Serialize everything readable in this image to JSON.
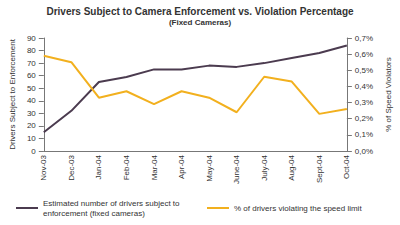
{
  "chart_data": {
    "type": "line",
    "title": "Drivers Subject to Camera Enforcement vs. Violation Percentage",
    "subtitle": "(Fixed Cameras)",
    "y_label": "Drivers Subject to Enforcement",
    "y2_label": "% of Speed Violators",
    "categories": [
      "Nov-03",
      "Dec-03",
      "Jan-04",
      "Feb-04",
      "Mar-04",
      "Apr-04",
      "May-04",
      "June-04",
      "July-04",
      "Aug-04",
      "Sept-04",
      "Oct-04"
    ],
    "series": [
      {
        "name": "Estimated number of drivers subject to enforcement (fixed cameras)",
        "color": "#4b3b4f",
        "marker": "none",
        "line_style": "solid",
        "values": [
          15,
          32,
          55,
          59,
          65,
          65,
          68,
          67,
          70,
          74,
          78,
          84
        ]
      },
      {
        "name": "% of drivers violating the speed limit",
        "color": "#f2b01e",
        "marker": "none",
        "line_style": "solid",
        "axis": "y2",
        "values": [
          0.59,
          0.55,
          0.33,
          0.37,
          0.29,
          0.37,
          0.33,
          0.24,
          0.46,
          0.43,
          0.23,
          0.26
        ]
      }
    ],
    "ylim": [
      0,
      90
    ],
    "yticks": [
      0,
      10,
      20,
      30,
      40,
      50,
      60,
      70,
      80,
      90
    ],
    "y2lim": [
      0,
      0.7
    ],
    "y2ticks": [
      {
        "value": 0,
        "label": "0,0%"
      },
      {
        "value": 0.1,
        "label": "0,1%"
      },
      {
        "value": 0.2,
        "label": "0,2%"
      },
      {
        "value": 0.3,
        "label": "0,3%"
      },
      {
        "value": 0.4,
        "label": "0,4%"
      },
      {
        "value": 0.5,
        "label": "0,5%"
      },
      {
        "value": 0.6,
        "label": "0,6%"
      },
      {
        "value": 0.7,
        "label": "0,7%"
      }
    ],
    "grid": false,
    "legend": "bottom"
  }
}
